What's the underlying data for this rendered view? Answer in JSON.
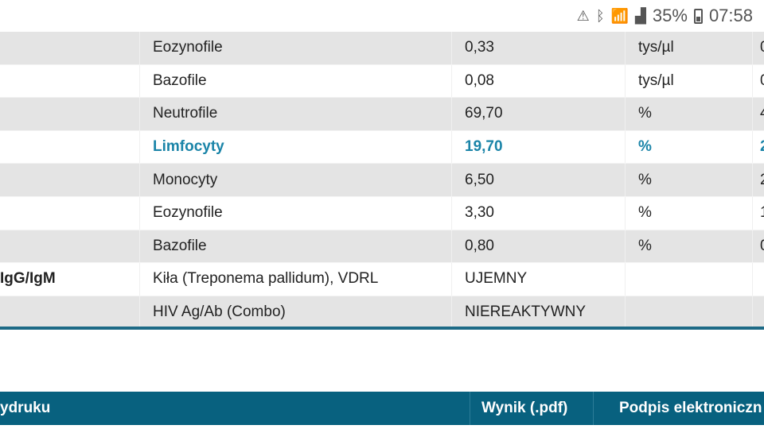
{
  "status_bar": {
    "battery": "35%",
    "time": "07:58",
    "icons": [
      "data-saver-icon",
      "bluetooth-icon",
      "wifi-icon",
      "signal-icon",
      "battery-icon"
    ]
  },
  "rows": [
    {
      "group": "",
      "name": "Eozynofile",
      "value": "0,33",
      "unit": "tys/µl",
      "ref": "0"
    },
    {
      "group": "",
      "name": "Bazofile",
      "value": "0,08",
      "unit": "tys/µl",
      "ref": "0"
    },
    {
      "group": "",
      "name": "Neutrofile",
      "value": "69,70",
      "unit": "%",
      "ref": "4"
    },
    {
      "group": "",
      "name": "Limfocyty",
      "value": "19,70",
      "unit": "%",
      "ref": "2",
      "highlight": true
    },
    {
      "group": "",
      "name": "Monocyty",
      "value": "6,50",
      "unit": "%",
      "ref": "2"
    },
    {
      "group": "",
      "name": "Eozynofile",
      "value": "3,30",
      "unit": "%",
      "ref": "1"
    },
    {
      "group": "",
      "name": "Bazofile",
      "value": "0,80",
      "unit": "%",
      "ref": "0"
    },
    {
      "group": "IgG/IgM",
      "name": "Kiła (Treponema pallidum), VDRL",
      "value": "UJEMNY",
      "unit": "",
      "ref": ""
    },
    {
      "group": "",
      "name": "HIV Ag/Ab (Combo)",
      "value": "NIEREAKTYWNY",
      "unit": "",
      "ref": ""
    }
  ],
  "footer": {
    "col1": "ydruku",
    "col2": "Wynik (.pdf)",
    "col3": "Podpis elektroniczn"
  },
  "colors": {
    "highlight": "#1a84a8",
    "header": "#08617f"
  }
}
